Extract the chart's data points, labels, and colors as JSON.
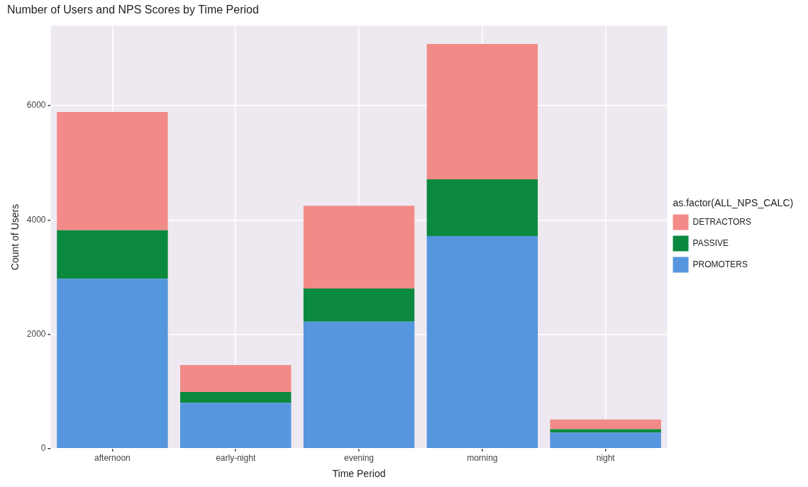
{
  "chart_data": {
    "type": "bar",
    "title": "Number of Users and NPS Scores by Time Period",
    "xlabel": "Time Period",
    "ylabel": "Count of Users",
    "legend_title": "as.factor(ALL_NPS_CALC)",
    "categories": [
      "afternoon",
      "early-night",
      "evening",
      "morning",
      "night"
    ],
    "series": [
      {
        "name": "PROMOTERS",
        "color": "#5596de",
        "values": [
          2970,
          800,
          2220,
          3720,
          280
        ]
      },
      {
        "name": "PASSIVE",
        "color": "#0b8a3f",
        "values": [
          850,
          190,
          580,
          990,
          60
        ]
      },
      {
        "name": "DETRACTORS",
        "color": "#f28b88",
        "values": [
          2070,
          470,
          1450,
          2370,
          170
        ]
      }
    ],
    "stacked": true,
    "ylim": [
      0,
      7400
    ],
    "yticks": [
      0,
      2000,
      4000,
      6000
    ],
    "grid": true,
    "legend": "right"
  }
}
